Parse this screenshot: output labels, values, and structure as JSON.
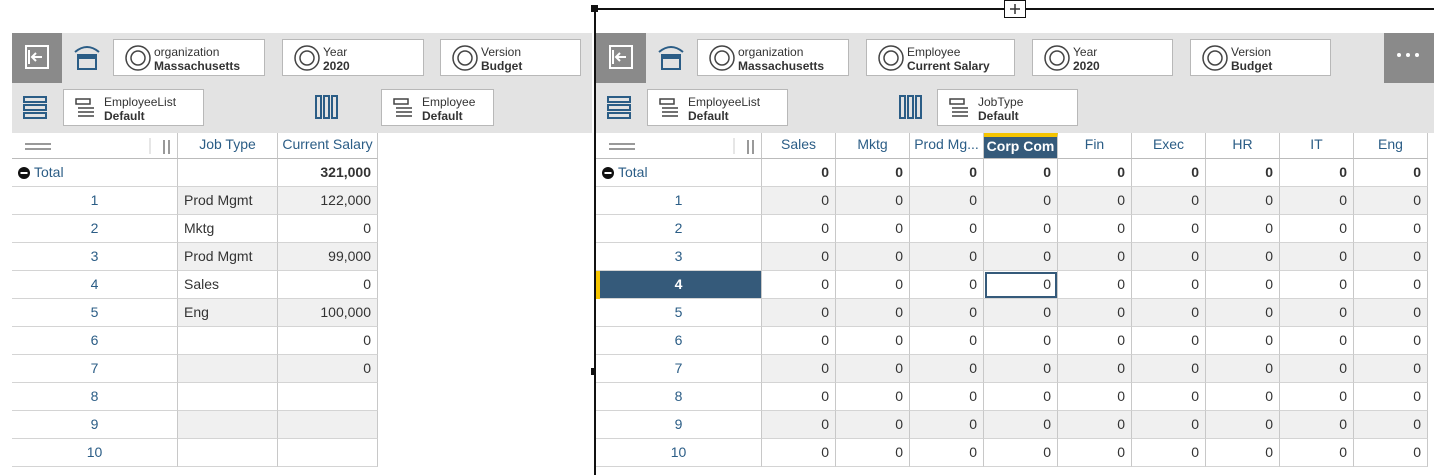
{
  "left": {
    "toolbar": [
      {
        "label": "organization",
        "value": "Massachusetts"
      },
      {
        "label": "Year",
        "value": "2020"
      },
      {
        "label": "Version",
        "value": "Budget"
      }
    ],
    "dims": [
      {
        "label": "EmployeeList",
        "value": "Default"
      },
      {
        "label": "Employee",
        "value": "Default"
      }
    ],
    "columns": [
      "Job Type",
      "Current Salary"
    ],
    "rows": [
      {
        "header": "Total",
        "cells": [
          null,
          "321,000"
        ]
      },
      {
        "header": "1",
        "cells": [
          "Prod Mgmt",
          "122,000"
        ]
      },
      {
        "header": "2",
        "cells": [
          "Mktg",
          "0"
        ]
      },
      {
        "header": "3",
        "cells": [
          "Prod Mgmt",
          "99,000"
        ]
      },
      {
        "header": "4",
        "cells": [
          "Sales",
          "0"
        ]
      },
      {
        "header": "5",
        "cells": [
          "Eng",
          "100,000"
        ]
      },
      {
        "header": "6",
        "cells": [
          null,
          "0"
        ]
      },
      {
        "header": "7",
        "cells": [
          null,
          "0"
        ]
      },
      {
        "header": "8",
        "cells": [
          null,
          null
        ]
      },
      {
        "header": "9",
        "cells": [
          null,
          null
        ]
      },
      {
        "header": "10",
        "cells": [
          null,
          null
        ]
      }
    ]
  },
  "right": {
    "toolbar": [
      {
        "label": "organization",
        "value": "Massachusetts"
      },
      {
        "label": "Employee",
        "value": "Current Salary"
      },
      {
        "label": "Year",
        "value": "2020"
      },
      {
        "label": "Version",
        "value": "Budget"
      }
    ],
    "dims": [
      {
        "label": "EmployeeList",
        "value": "Default"
      },
      {
        "label": "JobType",
        "value": "Default"
      }
    ],
    "columns": [
      "Sales",
      "Mktg",
      "Prod Mg...",
      "Corp Com",
      "Fin",
      "Exec",
      "HR",
      "IT",
      "Eng"
    ],
    "rows": [
      {
        "header": "Total",
        "cells": [
          0,
          0,
          0,
          0,
          0,
          0,
          0,
          0,
          0
        ]
      },
      {
        "header": "1",
        "cells": [
          0,
          0,
          0,
          0,
          0,
          0,
          0,
          0,
          0
        ]
      },
      {
        "header": "2",
        "cells": [
          0,
          0,
          0,
          0,
          0,
          0,
          0,
          0,
          0
        ]
      },
      {
        "header": "3",
        "cells": [
          0,
          0,
          0,
          0,
          0,
          0,
          0,
          0,
          0
        ]
      },
      {
        "header": "4",
        "cells": [
          0,
          0,
          0,
          0,
          0,
          0,
          0,
          0,
          0
        ]
      },
      {
        "header": "5",
        "cells": [
          0,
          0,
          0,
          0,
          0,
          0,
          0,
          0,
          0
        ]
      },
      {
        "header": "6",
        "cells": [
          0,
          0,
          0,
          0,
          0,
          0,
          0,
          0,
          0
        ]
      },
      {
        "header": "7",
        "cells": [
          0,
          0,
          0,
          0,
          0,
          0,
          0,
          0,
          0
        ]
      },
      {
        "header": "8",
        "cells": [
          0,
          0,
          0,
          0,
          0,
          0,
          0,
          0,
          0
        ]
      },
      {
        "header": "9",
        "cells": [
          0,
          0,
          0,
          0,
          0,
          0,
          0,
          0,
          0
        ]
      },
      {
        "header": "10",
        "cells": [
          0,
          0,
          0,
          0,
          0,
          0,
          0,
          0,
          0
        ]
      }
    ]
  }
}
